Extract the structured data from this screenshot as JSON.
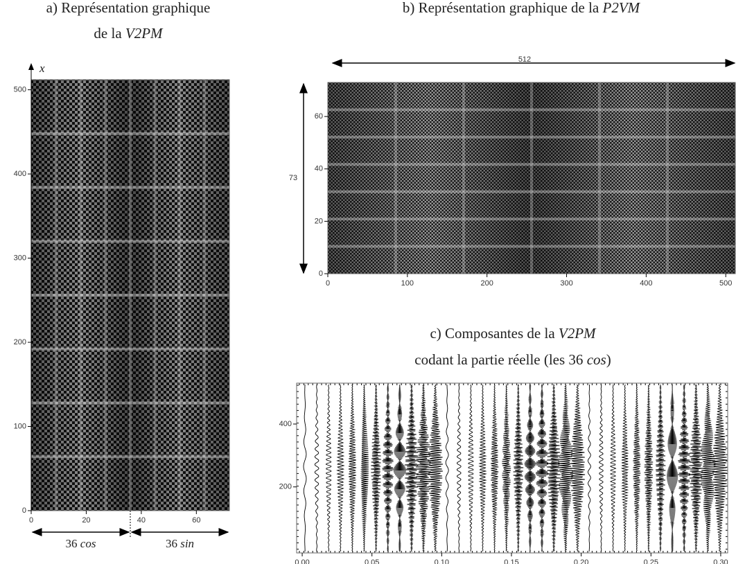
{
  "chart_data": [
    {
      "type": "heatmap",
      "title": [
        [
          "a) Représentation graphique"
        ],
        [
          "de la ",
          "V2PM"
        ]
      ],
      "ylabel": "x",
      "xlim": [
        0,
        72
      ],
      "xticks": [
        0,
        20,
        40,
        60
      ],
      "ylim": [
        0,
        512
      ],
      "yticks": [
        0,
        100,
        200,
        300,
        400,
        500
      ],
      "annotations": [
        [
          "36 ",
          "cos"
        ],
        [
          "36 ",
          "sin"
        ]
      ]
    },
    {
      "type": "heatmap",
      "title": [
        [
          "b) Représentation graphique de la ",
          "P2VM"
        ]
      ],
      "xlim": [
        0,
        512
      ],
      "xticks": [
        0,
        100,
        200,
        300,
        400,
        500
      ],
      "ylim": [
        0,
        73
      ],
      "yticks": [
        0,
        20,
        40,
        60
      ],
      "annotations": [
        [
          "512"
        ],
        [
          "73"
        ]
      ]
    },
    {
      "type": "line",
      "title": [
        [
          "c) Composantes de la ",
          "V2PM"
        ],
        [
          "codant la partie réelle (les 36 ",
          "cos",
          ")"
        ]
      ],
      "xlim": [
        -0.004,
        0.305
      ],
      "xticks": [
        {
          "value": 0,
          "label": "0.00"
        },
        {
          "value": 0.05,
          "label": "0.05"
        },
        {
          "value": 0.1,
          "label": "0.10"
        },
        {
          "value": 0.15,
          "label": "0.15"
        },
        {
          "value": 0.2,
          "label": "0.20"
        },
        {
          "value": 0.25,
          "label": "0.25"
        },
        {
          "value": 0.3,
          "label": "0.30"
        }
      ],
      "ylim": [
        -10,
        530
      ],
      "yticks": [
        200,
        400
      ]
    }
  ]
}
